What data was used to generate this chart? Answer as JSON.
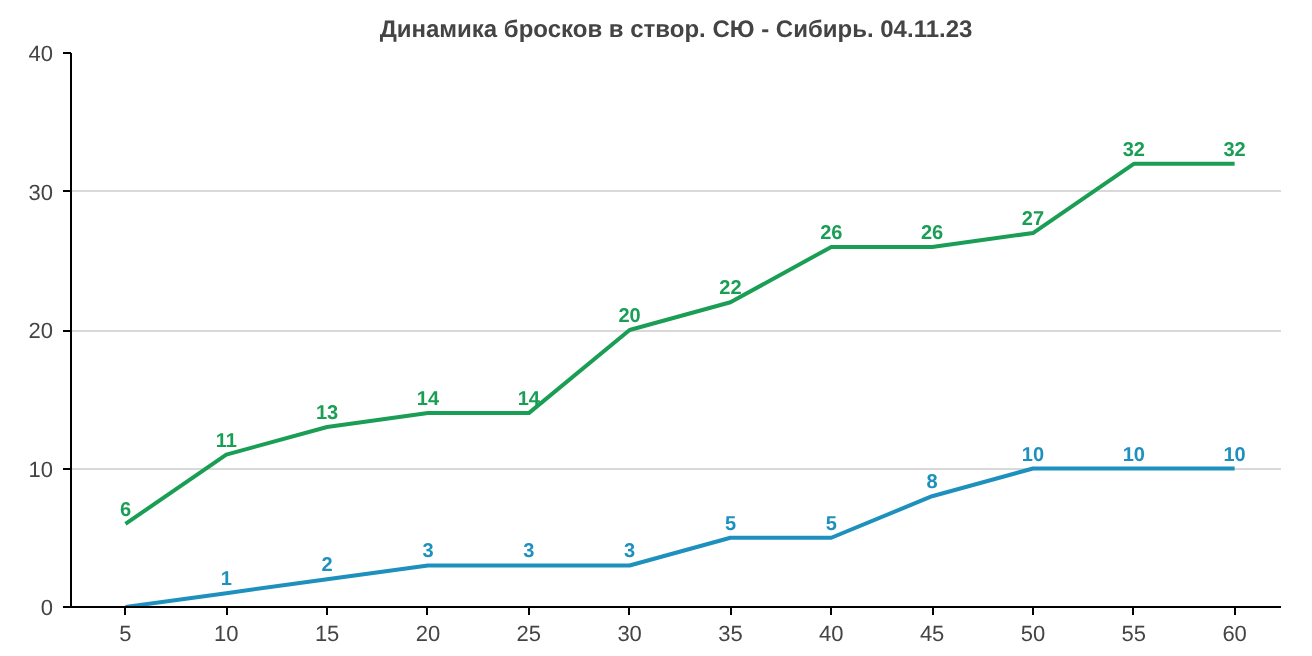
{
  "chart_data": {
    "type": "line",
    "title": "Динамика бросков в створ. СЮ - Сибирь. 04.11.23",
    "x": [
      5,
      10,
      15,
      20,
      25,
      30,
      35,
      40,
      45,
      50,
      55,
      60
    ],
    "series": [
      {
        "color": "#1a9e55",
        "values": [
          6,
          11,
          13,
          14,
          14,
          20,
          22,
          26,
          26,
          27,
          32,
          32
        ],
        "value_labels": [
          "6",
          "11",
          "13",
          "14",
          "14",
          "20",
          "22",
          "26",
          "26",
          "27",
          "32",
          "32"
        ]
      },
      {
        "color": "#1e90bd",
        "values": [
          0,
          1,
          2,
          3,
          3,
          3,
          5,
          5,
          8,
          10,
          10,
          10
        ],
        "value_labels": [
          null,
          "1",
          "2",
          "3",
          "3",
          "3",
          "5",
          "5",
          "8",
          "10",
          "10",
          "10"
        ]
      }
    ],
    "xlim": [
      2.3,
      62.3
    ],
    "ylim": [
      0,
      40
    ],
    "xticks": [
      5,
      10,
      15,
      20,
      25,
      30,
      35,
      40,
      45,
      50,
      55,
      60
    ],
    "yticks": [
      0,
      10,
      20,
      30,
      40
    ],
    "grid": "y",
    "line_style": "solid"
  }
}
